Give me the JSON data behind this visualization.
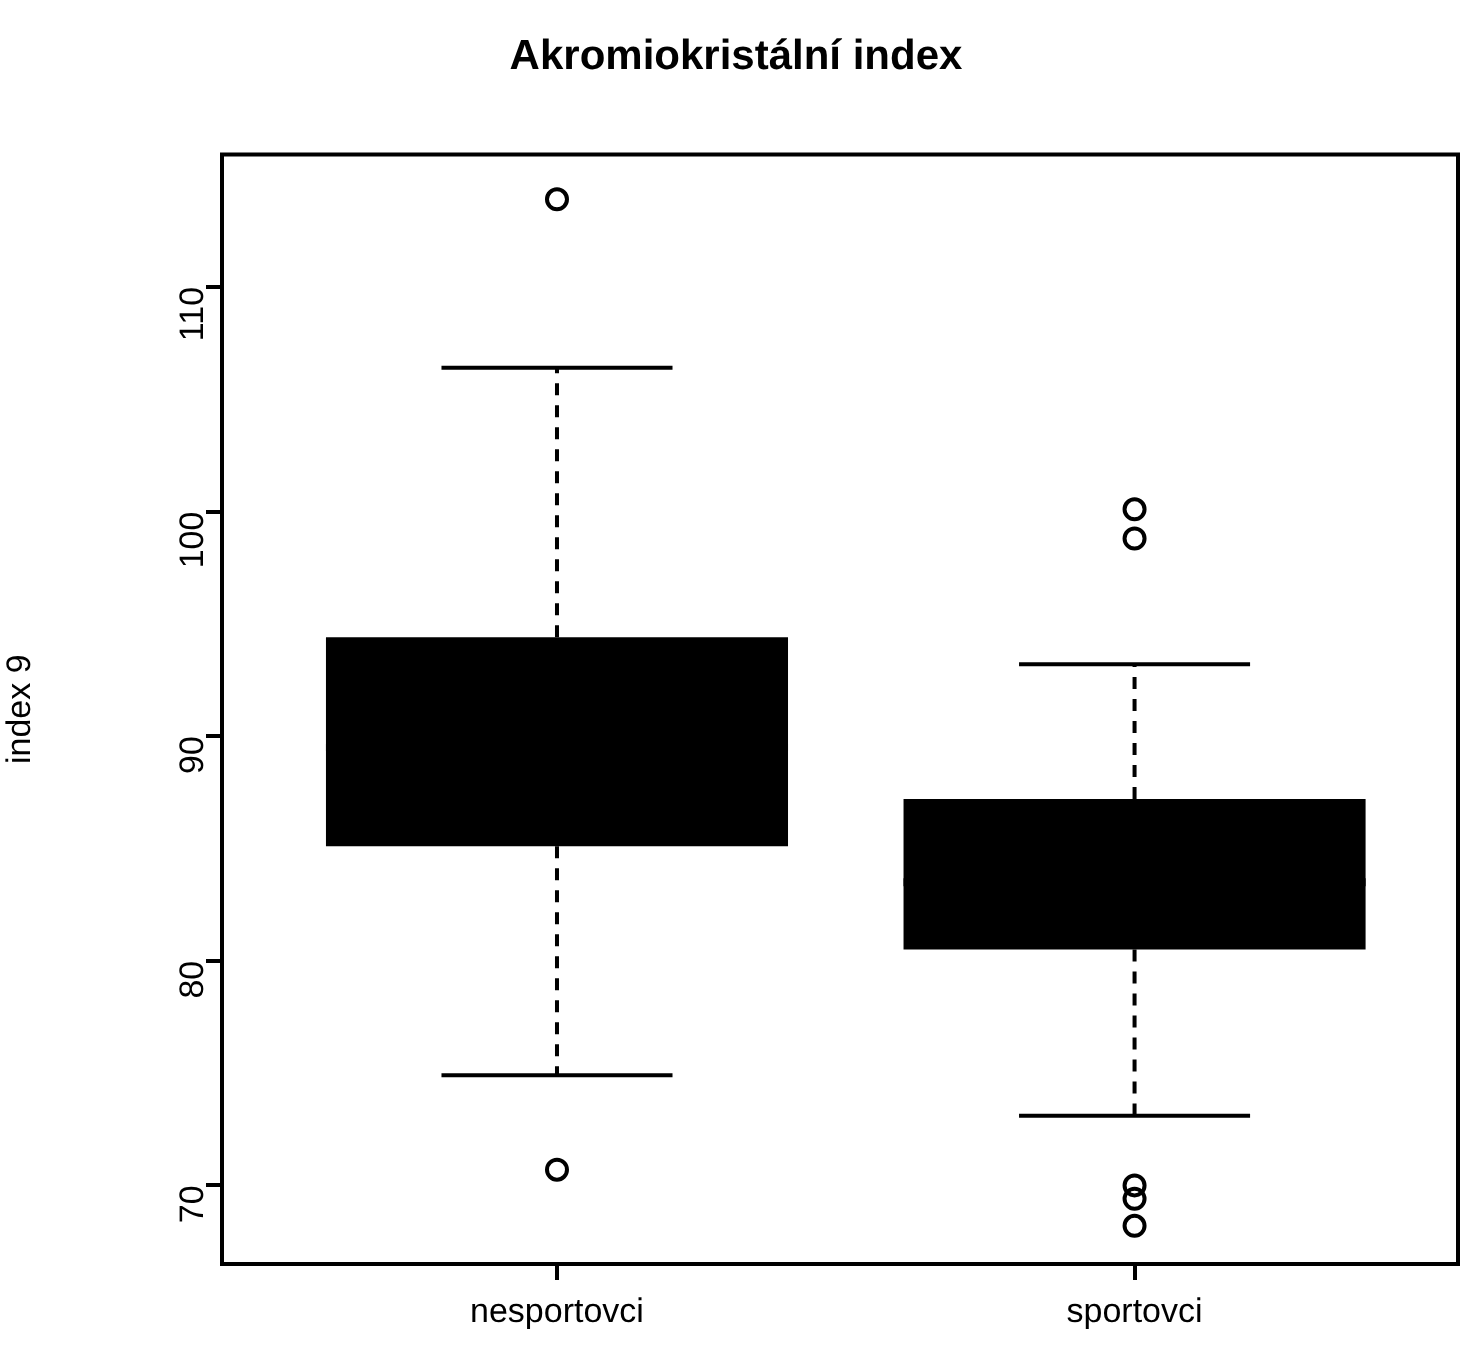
{
  "chart_data": {
    "type": "box",
    "title": "Akromiokristální index",
    "ylabel": "index 9",
    "categories": [
      "nesportovci",
      "sportovci"
    ],
    "color": "#000000",
    "boxes": [
      {
        "low": 74.9,
        "q1": 85.1,
        "median": 89.5,
        "q3": 94.4,
        "high": 106.4,
        "outliers": [
          113.9,
          70.7
        ]
      },
      {
        "low": 73.1,
        "q1": 80.5,
        "median": 83.5,
        "q3": 87.2,
        "high": 93.2,
        "outliers": [
          100.1,
          98.8,
          70.0,
          69.4,
          68.2
        ]
      }
    ],
    "ylim": [
      66.5,
      115.9
    ],
    "yticks": [
      70,
      80,
      90,
      100,
      110
    ],
    "grid": false,
    "legend": false
  }
}
